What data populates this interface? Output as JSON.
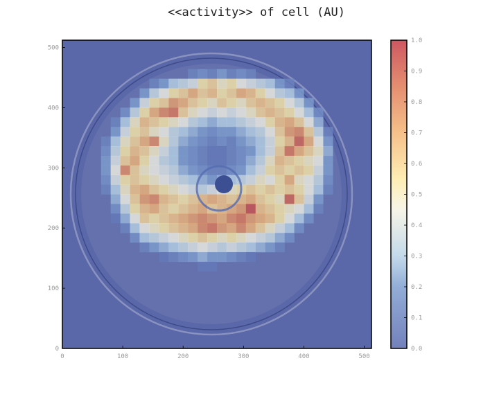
{
  "chart_data": {
    "type": "heatmap",
    "title": "<<activity>> of cell (AU)",
    "xlabel": "",
    "ylabel": "",
    "xlim": [
      0,
      512
    ],
    "ylim": [
      0,
      512
    ],
    "xticks": [
      "0",
      "100",
      "200",
      "300",
      "400",
      "500"
    ],
    "yticks": [
      "0",
      "100",
      "200",
      "300",
      "400",
      "500"
    ],
    "colorbar": {
      "range": [
        0.0,
        1.0
      ],
      "ticks": [
        "0.0",
        "0.1",
        "0.2",
        "0.3",
        "0.4",
        "0.5",
        "0.6",
        "0.7",
        "0.8",
        "0.9",
        "1.0"
      ],
      "colormap": "RdYlBu_r"
    },
    "grid": {
      "rows": 32,
      "cols": 32,
      "cell_size_data_units": 16
    },
    "background": "microscope image of a circular cell with a dark inner nucleus ring",
    "values": [
      [
        0,
        0,
        0,
        0,
        0,
        0,
        0,
        0,
        0,
        0,
        0,
        0,
        0,
        0,
        0,
        0,
        0,
        0,
        0,
        0,
        0,
        0,
        0,
        0,
        0,
        0,
        0,
        0,
        0,
        0,
        0,
        0
      ],
      [
        0,
        0,
        0,
        0,
        0,
        0,
        0,
        0,
        0,
        0,
        0,
        0,
        0,
        0,
        0,
        0,
        0,
        0,
        0,
        0,
        0,
        0,
        0,
        0,
        0,
        0,
        0,
        0,
        0,
        0,
        0,
        0
      ],
      [
        0,
        0,
        0,
        0,
        0,
        0,
        0,
        0,
        0,
        0,
        0,
        0,
        0,
        0,
        0,
        0,
        0,
        0,
        0,
        0,
        0,
        0,
        0,
        0,
        0,
        0,
        0,
        0,
        0,
        0,
        0,
        0
      ],
      [
        0,
        0,
        0,
        0,
        0,
        0,
        0,
        0,
        0,
        0,
        0,
        0,
        0,
        0.1,
        0.15,
        0.1,
        0.2,
        0.1,
        0.15,
        0.1,
        0,
        0,
        0,
        0,
        0,
        0,
        0,
        0,
        0,
        0,
        0,
        0
      ],
      [
        0,
        0,
        0,
        0,
        0,
        0,
        0,
        0,
        0,
        0.1,
        0.2,
        0.3,
        0.35,
        0.4,
        0.55,
        0.6,
        0.5,
        0.55,
        0.45,
        0.4,
        0.35,
        0.3,
        0.2,
        0.1,
        0,
        0,
        0,
        0,
        0,
        0,
        0,
        0
      ],
      [
        0,
        0,
        0,
        0,
        0,
        0,
        0,
        0,
        0.2,
        0.35,
        0.45,
        0.55,
        0.6,
        0.7,
        0.6,
        0.65,
        0.55,
        0.6,
        0.7,
        0.65,
        0.55,
        0.45,
        0.35,
        0.3,
        0.2,
        0,
        0,
        0,
        0,
        0,
        0,
        0
      ],
      [
        0,
        0,
        0,
        0,
        0,
        0,
        0,
        0.2,
        0.4,
        0.55,
        0.6,
        0.75,
        0.7,
        0.6,
        0.55,
        0.5,
        0.6,
        0.55,
        0.5,
        0.6,
        0.65,
        0.6,
        0.55,
        0.45,
        0.35,
        0.2,
        0,
        0,
        0,
        0,
        0,
        0
      ],
      [
        0,
        0,
        0,
        0,
        0,
        0,
        0.15,
        0.35,
        0.55,
        0.7,
        0.8,
        0.85,
        0.6,
        0.5,
        0.45,
        0.4,
        0.45,
        0.4,
        0.45,
        0.5,
        0.6,
        0.65,
        0.6,
        0.55,
        0.45,
        0.3,
        0.15,
        0,
        0,
        0,
        0,
        0
      ],
      [
        0,
        0,
        0,
        0,
        0,
        0.1,
        0.3,
        0.5,
        0.65,
        0.6,
        0.55,
        0.5,
        0.45,
        0.35,
        0.3,
        0.25,
        0.3,
        0.3,
        0.35,
        0.4,
        0.45,
        0.55,
        0.65,
        0.7,
        0.6,
        0.45,
        0.25,
        0,
        0,
        0,
        0,
        0
      ],
      [
        0,
        0,
        0,
        0,
        0,
        0.2,
        0.4,
        0.55,
        0.6,
        0.5,
        0.45,
        0.35,
        0.3,
        0.25,
        0.2,
        0.15,
        0.2,
        0.2,
        0.25,
        0.3,
        0.35,
        0.45,
        0.6,
        0.75,
        0.8,
        0.6,
        0.35,
        0.1,
        0,
        0,
        0,
        0
      ],
      [
        0,
        0,
        0,
        0,
        0.1,
        0.3,
        0.5,
        0.6,
        0.7,
        0.8,
        0.5,
        0.35,
        0.25,
        0.2,
        0.15,
        0.1,
        0.15,
        0.1,
        0.2,
        0.25,
        0.3,
        0.4,
        0.55,
        0.65,
        0.9,
        0.7,
        0.45,
        0.2,
        0,
        0,
        0,
        0
      ],
      [
        0,
        0,
        0,
        0,
        0.15,
        0.35,
        0.55,
        0.65,
        0.6,
        0.5,
        0.4,
        0.3,
        0.2,
        0.15,
        0.1,
        0.05,
        0.05,
        0.1,
        0.15,
        0.2,
        0.3,
        0.4,
        0.6,
        0.85,
        0.7,
        0.6,
        0.5,
        0.25,
        0,
        0,
        0,
        0
      ],
      [
        0,
        0,
        0,
        0,
        0.2,
        0.4,
        0.6,
        0.7,
        0.55,
        0.45,
        0.35,
        0.3,
        0.2,
        0.15,
        0.1,
        0.05,
        0.05,
        0.1,
        0.15,
        0.25,
        0.35,
        0.5,
        0.65,
        0.6,
        0.55,
        0.5,
        0.45,
        0.2,
        0,
        0,
        0,
        0
      ],
      [
        0,
        0,
        0,
        0,
        0.2,
        0.45,
        0.8,
        0.6,
        0.5,
        0.45,
        0.4,
        0.35,
        0.25,
        0.2,
        0.15,
        0.1,
        0.1,
        0.15,
        0.2,
        0.3,
        0.4,
        0.55,
        0.6,
        0.55,
        0.6,
        0.55,
        0.4,
        0.2,
        0,
        0,
        0,
        0
      ],
      [
        0,
        0,
        0,
        0,
        0.15,
        0.4,
        0.55,
        0.6,
        0.55,
        0.5,
        0.45,
        0.4,
        0.35,
        0.3,
        0.25,
        0.2,
        0.25,
        0.3,
        0.35,
        0.4,
        0.5,
        0.45,
        0.55,
        0.7,
        0.5,
        0.45,
        0.35,
        0.15,
        0,
        0,
        0,
        0
      ],
      [
        0,
        0,
        0,
        0,
        0.1,
        0.3,
        0.5,
        0.65,
        0.7,
        0.6,
        0.55,
        0.5,
        0.45,
        0.4,
        0.35,
        0.4,
        0.45,
        0.5,
        0.55,
        0.6,
        0.55,
        0.6,
        0.55,
        0.6,
        0.55,
        0.45,
        0.3,
        0.1,
        0,
        0,
        0,
        0
      ],
      [
        0,
        0,
        0,
        0,
        0,
        0.25,
        0.45,
        0.6,
        0.75,
        0.8,
        0.65,
        0.6,
        0.55,
        0.6,
        0.65,
        0.7,
        0.65,
        0.6,
        0.65,
        0.7,
        0.6,
        0.55,
        0.5,
        0.9,
        0.6,
        0.4,
        0.2,
        0,
        0,
        0,
        0,
        0
      ],
      [
        0,
        0,
        0,
        0,
        0,
        0.15,
        0.35,
        0.55,
        0.65,
        0.7,
        0.6,
        0.55,
        0.6,
        0.65,
        0.7,
        0.6,
        0.65,
        0.7,
        0.75,
        0.95,
        0.65,
        0.6,
        0.55,
        0.5,
        0.45,
        0.3,
        0.1,
        0,
        0,
        0,
        0,
        0
      ],
      [
        0,
        0,
        0,
        0,
        0,
        0.05,
        0.25,
        0.45,
        0.6,
        0.55,
        0.6,
        0.65,
        0.7,
        0.75,
        0.8,
        0.75,
        0.7,
        0.8,
        0.85,
        0.75,
        0.7,
        0.65,
        0.55,
        0.45,
        0.3,
        0.15,
        0,
        0,
        0,
        0,
        0,
        0
      ],
      [
        0,
        0,
        0,
        0,
        0,
        0,
        0.1,
        0.3,
        0.45,
        0.5,
        0.55,
        0.6,
        0.65,
        0.7,
        0.8,
        0.85,
        0.75,
        0.7,
        0.8,
        0.7,
        0.6,
        0.5,
        0.4,
        0.3,
        0.15,
        0,
        0,
        0,
        0,
        0,
        0,
        0
      ],
      [
        0,
        0,
        0,
        0,
        0,
        0,
        0,
        0.15,
        0.3,
        0.35,
        0.4,
        0.45,
        0.5,
        0.55,
        0.6,
        0.55,
        0.5,
        0.55,
        0.5,
        0.45,
        0.4,
        0.35,
        0.25,
        0.15,
        0,
        0,
        0,
        0,
        0,
        0,
        0,
        0
      ],
      [
        0,
        0,
        0,
        0,
        0,
        0,
        0,
        0,
        0.1,
        0.2,
        0.25,
        0.3,
        0.35,
        0.4,
        0.45,
        0.4,
        0.35,
        0.4,
        0.35,
        0.3,
        0.25,
        0.2,
        0.1,
        0,
        0,
        0,
        0,
        0,
        0,
        0,
        0,
        0
      ],
      [
        0,
        0,
        0,
        0,
        0,
        0,
        0,
        0,
        0,
        0,
        0.05,
        0.1,
        0.15,
        0.2,
        0.25,
        0.2,
        0.2,
        0.15,
        0.1,
        0.05,
        0,
        0,
        0,
        0,
        0,
        0,
        0,
        0,
        0,
        0,
        0,
        0
      ],
      [
        0,
        0,
        0,
        0,
        0,
        0,
        0,
        0,
        0,
        0,
        0,
        0,
        0,
        0,
        0.05,
        0.05,
        0,
        0,
        0,
        0,
        0,
        0,
        0,
        0,
        0,
        0,
        0,
        0,
        0,
        0,
        0,
        0
      ],
      [
        0,
        0,
        0,
        0,
        0,
        0,
        0,
        0,
        0,
        0,
        0,
        0,
        0,
        0,
        0,
        0,
        0,
        0,
        0,
        0,
        0,
        0,
        0,
        0,
        0,
        0,
        0,
        0,
        0,
        0,
        0,
        0
      ],
      [
        0,
        0,
        0,
        0,
        0,
        0,
        0,
        0,
        0,
        0,
        0,
        0,
        0,
        0,
        0,
        0,
        0,
        0,
        0,
        0,
        0,
        0,
        0,
        0,
        0,
        0,
        0,
        0,
        0,
        0,
        0,
        0
      ],
      [
        0,
        0,
        0,
        0,
        0,
        0,
        0,
        0,
        0,
        0,
        0,
        0,
        0,
        0,
        0,
        0,
        0,
        0,
        0,
        0,
        0,
        0,
        0,
        0,
        0,
        0,
        0,
        0,
        0,
        0,
        0,
        0
      ],
      [
        0,
        0,
        0,
        0,
        0,
        0,
        0,
        0,
        0,
        0,
        0,
        0,
        0,
        0,
        0,
        0,
        0,
        0,
        0,
        0,
        0,
        0,
        0,
        0,
        0,
        0,
        0,
        0,
        0,
        0,
        0,
        0
      ],
      [
        0,
        0,
        0,
        0,
        0,
        0,
        0,
        0,
        0,
        0,
        0,
        0,
        0,
        0,
        0,
        0,
        0,
        0,
        0,
        0,
        0,
        0,
        0,
        0,
        0,
        0,
        0,
        0,
        0,
        0,
        0,
        0
      ],
      [
        0,
        0,
        0,
        0,
        0,
        0,
        0,
        0,
        0,
        0,
        0,
        0,
        0,
        0,
        0,
        0,
        0,
        0,
        0,
        0,
        0,
        0,
        0,
        0,
        0,
        0,
        0,
        0,
        0,
        0,
        0,
        0
      ],
      [
        0,
        0,
        0,
        0,
        0,
        0,
        0,
        0,
        0,
        0,
        0,
        0,
        0,
        0,
        0,
        0,
        0,
        0,
        0,
        0,
        0,
        0,
        0,
        0,
        0,
        0,
        0,
        0,
        0,
        0,
        0,
        0
      ],
      [
        0,
        0,
        0,
        0,
        0,
        0,
        0,
        0,
        0,
        0,
        0,
        0,
        0,
        0,
        0,
        0,
        0,
        0,
        0,
        0,
        0,
        0,
        0,
        0,
        0,
        0,
        0,
        0,
        0,
        0,
        0,
        0
      ]
    ]
  }
}
